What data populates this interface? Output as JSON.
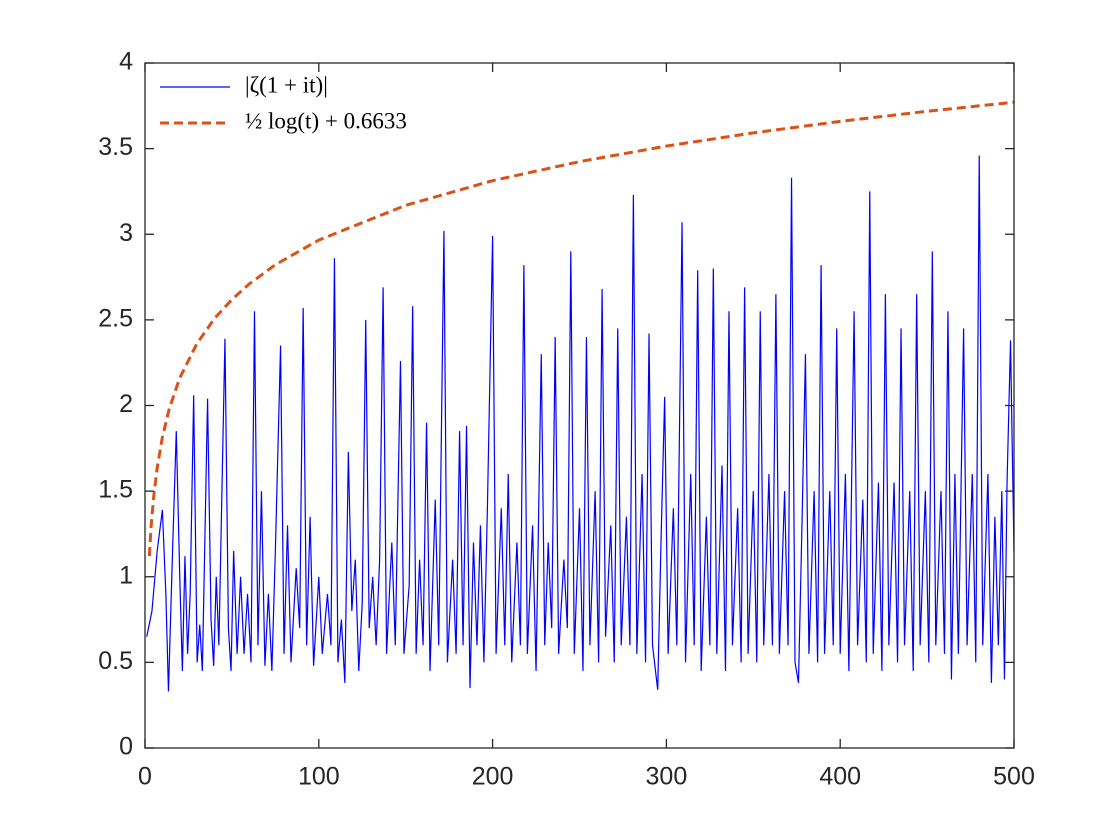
{
  "chart_data": {
    "type": "line",
    "series": [
      {
        "name": "|ζ(1 + it)|",
        "color": "#0000ff",
        "line_style": "solid",
        "x": [
          1,
          4,
          7,
          10,
          12,
          13.5,
          16,
          18,
          20,
          21.5,
          23,
          24.5,
          26,
          28,
          30,
          31.5,
          33,
          36,
          38,
          39.5,
          41,
          42.5,
          46,
          48,
          49.5,
          51,
          53,
          55,
          57,
          59,
          61,
          63,
          65,
          67,
          69,
          71,
          73,
          75,
          78,
          80,
          82,
          84,
          87,
          89,
          91,
          93,
          95,
          97,
          100,
          102,
          105,
          107,
          109,
          111,
          113,
          115,
          117,
          119,
          121,
          123,
          125,
          127,
          129,
          131,
          133,
          135,
          137,
          139,
          142,
          144,
          147,
          149,
          152,
          154,
          156,
          158,
          160,
          162,
          164,
          167,
          169,
          172,
          174,
          177,
          179,
          181,
          183,
          185,
          187,
          189,
          191,
          193,
          195,
          197,
          200,
          202,
          205,
          207,
          209,
          211,
          214,
          216,
          218,
          220,
          223,
          225,
          228,
          230,
          232,
          234,
          236,
          238,
          241,
          243,
          245,
          247,
          250,
          252,
          254,
          256,
          259,
          261,
          263,
          265,
          268,
          270,
          272,
          274,
          277,
          279,
          281,
          283,
          286,
          288,
          290,
          292,
          295,
          297,
          299,
          301,
          304,
          306,
          309,
          311,
          314,
          316,
          318,
          320,
          323,
          325,
          327,
          329,
          332,
          334,
          336,
          338,
          341,
          343,
          345,
          347,
          350,
          352,
          354,
          356,
          359,
          361,
          363,
          365,
          368,
          370,
          372,
          374,
          376,
          378,
          380,
          382,
          385,
          387,
          389,
          391,
          394,
          396,
          398,
          400,
          403,
          405,
          408,
          410,
          413,
          415,
          417,
          419,
          422,
          424,
          426,
          428,
          431,
          433,
          435,
          437,
          440,
          442,
          444,
          446,
          449,
          451,
          453,
          455,
          458,
          460,
          462,
          464,
          466,
          468,
          471,
          473,
          476,
          478,
          480,
          482,
          485,
          487,
          489,
          491,
          493,
          494.5,
          496,
          498,
          499,
          500
        ],
        "values": [
          0.65,
          0.8,
          1.15,
          1.39,
          0.9,
          0.33,
          1.2,
          1.85,
          1.0,
          0.45,
          1.12,
          0.55,
          0.9,
          2.06,
          0.5,
          0.72,
          0.45,
          2.04,
          0.75,
          0.48,
          1.0,
          0.6,
          2.39,
          0.7,
          0.45,
          1.15,
          0.55,
          1.0,
          0.55,
          0.9,
          0.5,
          2.55,
          0.6,
          1.5,
          0.48,
          0.9,
          0.45,
          1.15,
          2.35,
          0.55,
          1.3,
          0.5,
          1.05,
          0.7,
          2.57,
          0.6,
          1.35,
          0.48,
          1.0,
          0.55,
          0.9,
          0.6,
          2.86,
          0.5,
          0.75,
          0.38,
          1.73,
          0.8,
          1.1,
          0.45,
          0.85,
          2.5,
          0.7,
          1.0,
          0.6,
          1.1,
          2.69,
          0.55,
          1.2,
          0.6,
          2.26,
          0.55,
          0.95,
          2.58,
          0.55,
          1.1,
          0.6,
          1.9,
          0.45,
          1.45,
          0.6,
          3.02,
          0.5,
          1.1,
          0.55,
          1.85,
          0.6,
          1.88,
          0.35,
          1.2,
          0.6,
          1.3,
          0.5,
          1.4,
          2.99,
          0.55,
          1.4,
          0.6,
          1.6,
          0.5,
          1.2,
          0.6,
          2.82,
          0.55,
          1.3,
          0.45,
          2.3,
          0.6,
          1.2,
          0.7,
          2.4,
          0.55,
          1.1,
          0.7,
          2.9,
          0.55,
          1.4,
          0.45,
          2.4,
          0.6,
          1.5,
          0.5,
          2.68,
          0.65,
          1.3,
          0.5,
          2.45,
          0.6,
          1.35,
          0.6,
          3.23,
          0.55,
          1.6,
          0.5,
          2.42,
          0.6,
          0.34,
          1.25,
          2.05,
          0.55,
          1.4,
          0.6,
          3.07,
          0.5,
          1.6,
          0.6,
          2.79,
          0.45,
          1.35,
          0.6,
          2.8,
          0.55,
          1.65,
          0.45,
          2.55,
          0.6,
          1.4,
          0.5,
          2.69,
          0.55,
          1.5,
          0.5,
          2.55,
          0.6,
          1.6,
          0.6,
          2.65,
          0.55,
          1.5,
          0.6,
          3.33,
          0.5,
          0.38,
          1.3,
          2.3,
          0.55,
          1.5,
          0.5,
          2.82,
          0.55,
          1.5,
          0.6,
          2.45,
          0.55,
          1.6,
          0.45,
          2.55,
          0.6,
          1.45,
          0.5,
          3.25,
          0.55,
          1.55,
          0.45,
          2.65,
          0.6,
          1.55,
          0.5,
          2.45,
          0.6,
          1.5,
          0.45,
          2.65,
          0.6,
          1.5,
          0.5,
          2.9,
          0.6,
          1.5,
          0.55,
          2.55,
          0.4,
          1.6,
          0.55,
          2.45,
          0.6,
          1.6,
          0.5,
          3.46,
          0.6,
          1.6,
          0.38,
          1.35,
          0.6,
          1.5,
          0.4,
          1.55,
          2.38,
          1.75,
          1.15
        ]
      },
      {
        "name": "½ log(t) + 0.6633",
        "color": "#d95319",
        "line_style": "dashed",
        "x": [
          2.5,
          3.5,
          5,
          7,
          10,
          14,
          20,
          30,
          40,
          50,
          60,
          75,
          100,
          150,
          200,
          250,
          300,
          350,
          400,
          450,
          500
        ],
        "values": [
          1.121,
          1.29,
          1.468,
          1.636,
          1.815,
          1.983,
          2.161,
          2.364,
          2.508,
          2.619,
          2.71,
          2.822,
          2.966,
          3.169,
          3.313,
          3.424,
          3.515,
          3.592,
          3.659,
          3.718,
          3.771
        ]
      }
    ],
    "xlim": [
      0,
      500
    ],
    "ylim": [
      0,
      4
    ],
    "xticks": [
      0,
      100,
      200,
      300,
      400,
      500
    ],
    "yticks": [
      0,
      0.5,
      1,
      1.5,
      2,
      2.5,
      3,
      3.5,
      4
    ],
    "legend": "top-left"
  }
}
